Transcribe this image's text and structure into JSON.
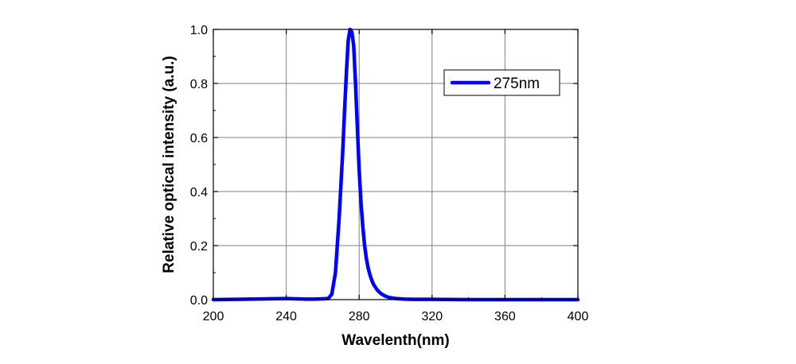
{
  "chart_data": {
    "type": "line",
    "title": "",
    "xlabel": "Wavelenth(nm)",
    "ylabel": "Relative optical intensity (a.u.)",
    "xlim": [
      200,
      400
    ],
    "ylim": [
      0,
      1.0
    ],
    "x_ticks": [
      200,
      240,
      280,
      320,
      360,
      400
    ],
    "x_tick_labels": [
      "200",
      "240",
      "280",
      "320",
      "360",
      "400"
    ],
    "y_ticks": [
      0,
      0.2,
      0.4,
      0.6,
      0.8,
      1.0
    ],
    "y_tick_labels": [
      "0.0",
      "0.2",
      "0.4",
      "0.6",
      "0.8",
      "1.0"
    ],
    "grid": true,
    "legend_position": "top-right",
    "series": [
      {
        "name": "275nm",
        "color": "#0000ff",
        "x": [
          200,
          220,
          240,
          245,
          250,
          255,
          260,
          263,
          265,
          267,
          269,
          271,
          272,
          273,
          274,
          275,
          276,
          277,
          278,
          279,
          280,
          281,
          282,
          283,
          284,
          285,
          286,
          287,
          288,
          290,
          292,
          294,
          296,
          298,
          300,
          305,
          310,
          320,
          340,
          360,
          380,
          400
        ],
        "y": [
          0.0,
          0.002,
          0.004,
          0.003,
          0.002,
          0.002,
          0.003,
          0.004,
          0.02,
          0.1,
          0.3,
          0.55,
          0.7,
          0.84,
          0.96,
          1.0,
          0.99,
          0.94,
          0.8,
          0.64,
          0.48,
          0.36,
          0.27,
          0.2,
          0.15,
          0.115,
          0.09,
          0.07,
          0.055,
          0.035,
          0.022,
          0.014,
          0.009,
          0.006,
          0.004,
          0.002,
          0.001,
          0.001,
          0.0,
          0.0,
          0.0,
          0.0
        ]
      }
    ]
  }
}
